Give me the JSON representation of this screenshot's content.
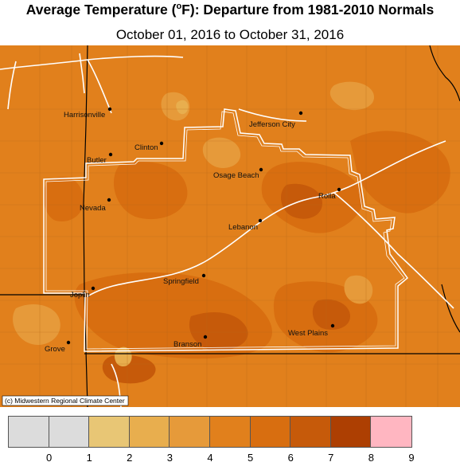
{
  "header": {
    "title_pre": "Average Temperature (",
    "title_deg": "o",
    "title_post": "F): Departure from 1981-2010 Normals",
    "subtitle": "October 01, 2016 to October 31, 2016"
  },
  "map": {
    "copyright": "(c) Midwestern Regional Climate Center",
    "cities": [
      {
        "name": "Harrisonville"
      },
      {
        "name": "Jefferson City"
      },
      {
        "name": "Clinton"
      },
      {
        "name": "Butler"
      },
      {
        "name": "Osage Beach"
      },
      {
        "name": "Rolla"
      },
      {
        "name": "Nevada"
      },
      {
        "name": "Lebanon"
      },
      {
        "name": "Springfield"
      },
      {
        "name": "Joplin"
      },
      {
        "name": "West Plains"
      },
      {
        "name": "Branson"
      },
      {
        "name": "Grove"
      }
    ]
  },
  "legend": {
    "labels": [
      "0",
      "1",
      "2",
      "3",
      "4",
      "5",
      "6",
      "7",
      "8",
      "9"
    ],
    "colors": [
      "#dcdcdc",
      "#dcdcdc",
      "#e8c675",
      "#e8ae4e",
      "#e69a3a",
      "#e1801c",
      "#d86e10",
      "#c65a0a",
      "#ad3f02",
      "#ffb6c1"
    ]
  }
}
